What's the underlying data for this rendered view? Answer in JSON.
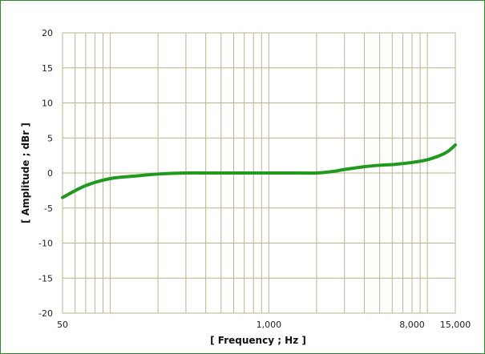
{
  "chart_data": {
    "type": "line",
    "title": "",
    "xlabel": "[ Frequency ; Hz ]",
    "ylabel": "[ Amplitude ; dBr ]",
    "x_scale": "log",
    "xlim": [
      50,
      15000
    ],
    "ylim": [
      -20,
      20
    ],
    "y_ticks": [
      20,
      15,
      10,
      5,
      0,
      -5,
      -10,
      -15,
      -20
    ],
    "x_tick_labels": [
      {
        "value": 50,
        "label": "50"
      },
      {
        "value": 1000,
        "label": "1,000"
      },
      {
        "value": 8000,
        "label": "8,000"
      },
      {
        "value": 15000,
        "label": "15,000"
      }
    ],
    "grid": true,
    "legend": "none",
    "series": [
      {
        "color": "#1f9a1f",
        "x": [
          50,
          70,
          100,
          150,
          200,
          300,
          400,
          500,
          700,
          1000,
          1500,
          2000,
          2500,
          3000,
          4000,
          5000,
          6000,
          7000,
          8000,
          10000,
          12000,
          13500,
          15000
        ],
        "y": [
          -3.5,
          -1.8,
          -0.8,
          -0.4,
          -0.15,
          0,
          0,
          0,
          0,
          0,
          0,
          0,
          0.2,
          0.5,
          0.9,
          1.1,
          1.2,
          1.35,
          1.5,
          1.9,
          2.5,
          3.1,
          4.0
        ]
      }
    ]
  },
  "colors": {
    "grid": "#bdb38a",
    "frame": "#2e8b2e",
    "line": "#1f9a1f"
  }
}
